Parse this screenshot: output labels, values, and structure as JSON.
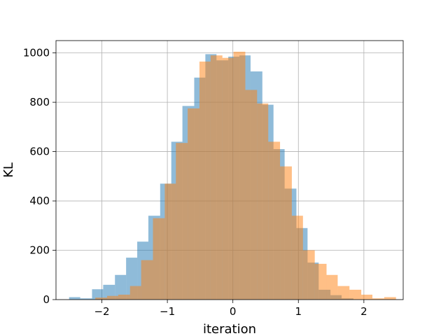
{
  "chart_data": {
    "type": "bar",
    "subtype": "overlaid-histogram",
    "title": "",
    "xlabel": "iteration",
    "ylabel": "KL",
    "xlim": [
      -2.7,
      2.6
    ],
    "ylim": [
      0,
      1050
    ],
    "xticks": [
      -2,
      -1,
      0,
      1,
      2
    ],
    "xtick_labels": [
      "−2",
      "−1",
      "0",
      "1",
      "2"
    ],
    "yticks": [
      0,
      200,
      400,
      600,
      800,
      1000
    ],
    "ytick_labels": [
      "0",
      "200",
      "400",
      "600",
      "800",
      "1000"
    ],
    "grid": true,
    "legend": "none",
    "series": [
      {
        "color": "#1f77b4",
        "alpha": 0.5,
        "bins": [
          [
            -2.5,
            -2.33,
            10
          ],
          [
            -2.33,
            -2.15,
            5
          ],
          [
            -2.15,
            -1.98,
            42
          ],
          [
            -1.98,
            -1.8,
            60
          ],
          [
            -1.8,
            -1.63,
            100
          ],
          [
            -1.63,
            -1.46,
            170
          ],
          [
            -1.46,
            -1.29,
            235
          ],
          [
            -1.29,
            -1.11,
            340
          ],
          [
            -1.11,
            -0.94,
            470
          ],
          [
            -0.94,
            -0.77,
            640
          ],
          [
            -0.77,
            -0.59,
            785
          ],
          [
            -0.59,
            -0.42,
            900
          ],
          [
            -0.42,
            -0.25,
            995
          ],
          [
            -0.25,
            -0.07,
            970
          ],
          [
            -0.07,
            0.1,
            985
          ],
          [
            0.1,
            0.27,
            990
          ],
          [
            0.27,
            0.45,
            925
          ],
          [
            0.45,
            0.62,
            790
          ],
          [
            0.62,
            0.79,
            610
          ],
          [
            0.79,
            0.97,
            450
          ],
          [
            0.97,
            1.14,
            290
          ],
          [
            1.14,
            1.31,
            150
          ],
          [
            1.31,
            1.49,
            40
          ],
          [
            1.49,
            1.66,
            18
          ],
          [
            1.66,
            1.84,
            5
          ]
        ]
      },
      {
        "color": "#ff7f0e",
        "alpha": 0.5,
        "bins": [
          [
            -2.1,
            -1.92,
            8
          ],
          [
            -1.92,
            -1.75,
            15
          ],
          [
            -1.75,
            -1.57,
            20
          ],
          [
            -1.57,
            -1.4,
            55
          ],
          [
            -1.4,
            -1.22,
            160
          ],
          [
            -1.22,
            -1.04,
            330
          ],
          [
            -1.04,
            -0.87,
            470
          ],
          [
            -0.87,
            -0.69,
            635
          ],
          [
            -0.69,
            -0.51,
            775
          ],
          [
            -0.51,
            -0.34,
            965
          ],
          [
            -0.34,
            -0.16,
            990
          ],
          [
            -0.16,
            0.01,
            980
          ],
          [
            0.01,
            0.19,
            1005
          ],
          [
            0.19,
            0.37,
            850
          ],
          [
            0.37,
            0.54,
            795
          ],
          [
            0.54,
            0.72,
            640
          ],
          [
            0.72,
            0.9,
            540
          ],
          [
            0.9,
            1.07,
            340
          ],
          [
            1.07,
            1.25,
            200
          ],
          [
            1.25,
            1.43,
            145
          ],
          [
            1.43,
            1.6,
            100
          ],
          [
            1.6,
            1.78,
            55
          ],
          [
            1.78,
            1.96,
            40
          ],
          [
            1.96,
            2.13,
            20
          ],
          [
            2.13,
            2.31,
            5
          ],
          [
            2.31,
            2.49,
            10
          ]
        ]
      }
    ]
  }
}
